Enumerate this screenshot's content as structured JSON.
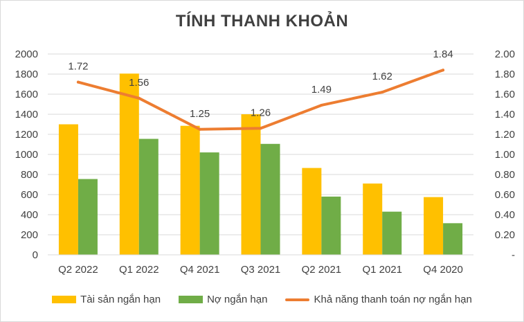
{
  "colors": {
    "series1": "#ffc000",
    "series2": "#70ad47",
    "series3": "#ed7d31",
    "gridline": "#d9d9d9",
    "text": "#404040"
  },
  "chart_data": {
    "type": "bar",
    "title": "TÍNH THANH KHOẢN",
    "categories": [
      "Q2 2022",
      "Q1 2022",
      "Q4 2021",
      "Q3 2021",
      "Q2 2021",
      "Q1 2021",
      "Q4 2020"
    ],
    "series": [
      {
        "name": "Tài sản ngắn hạn",
        "type": "bar",
        "axis": "left",
        "values": [
          1300,
          1805,
          1285,
          1400,
          865,
          710,
          575
        ]
      },
      {
        "name": "Nợ ngắn hạn",
        "type": "bar",
        "axis": "left",
        "values": [
          755,
          1155,
          1020,
          1105,
          580,
          430,
          315
        ]
      },
      {
        "name": "Khả năng thanh toán nợ ngắn hạn",
        "type": "line",
        "axis": "right",
        "values": [
          1.72,
          1.56,
          1.25,
          1.26,
          1.49,
          1.62,
          1.84
        ],
        "data_labels": [
          "1.72",
          "1.56",
          "1.25",
          "1.26",
          "1.49",
          "1.62",
          "1.84"
        ]
      }
    ],
    "y_left": {
      "ylim": [
        0,
        2000
      ],
      "ticks": [
        "0",
        "200",
        "400",
        "600",
        "800",
        "1000",
        "1200",
        "1400",
        "1600",
        "1800",
        "2000"
      ]
    },
    "y_right": {
      "ylim": [
        0,
        2.0
      ],
      "ticks": [
        "-",
        "0.20",
        "0.40",
        "0.60",
        "0.80",
        "1.00",
        "1.20",
        "1.40",
        "1.60",
        "1.80",
        "2.00"
      ]
    },
    "grid": true,
    "legend_position": "bottom"
  }
}
